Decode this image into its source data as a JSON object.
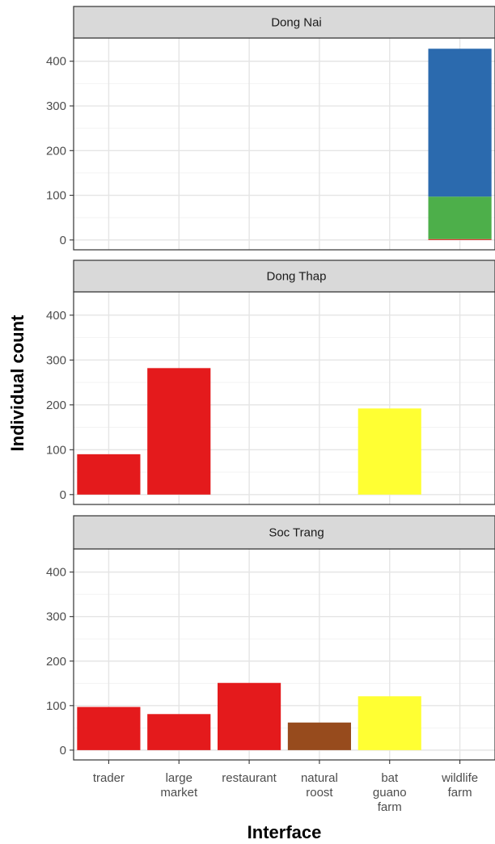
{
  "chart_data": {
    "type": "bar",
    "stacked": true,
    "xlabel": "Interface",
    "ylabel": "Individual count",
    "ylim": [
      0,
      450
    ],
    "y_ticks": [
      0,
      100,
      200,
      300,
      400
    ],
    "grid": true,
    "categories": [
      {
        "id": "trader",
        "lines": [
          "trader"
        ]
      },
      {
        "id": "large-market",
        "lines": [
          "large",
          "market"
        ]
      },
      {
        "id": "restaurant",
        "lines": [
          "restaurant"
        ]
      },
      {
        "id": "natural-roost",
        "lines": [
          "natural",
          "roost"
        ]
      },
      {
        "id": "bat-guano-farm",
        "lines": [
          "bat",
          "guano",
          "farm"
        ]
      },
      {
        "id": "wildlife-farm",
        "lines": [
          "wildlife",
          "farm"
        ]
      }
    ],
    "panels": [
      {
        "title": "Dong Nai",
        "bars": [
          {
            "category": "wildlife-farm",
            "segments": [
              {
                "value": 2,
                "color": "#E41A1C"
              },
              {
                "value": 95,
                "color": "#4DAF4A"
              },
              {
                "value": 331,
                "color": "#2B6AAE"
              }
            ]
          }
        ]
      },
      {
        "title": "Dong Thap",
        "bars": [
          {
            "category": "trader",
            "segments": [
              {
                "value": 90,
                "color": "#E41A1C"
              }
            ]
          },
          {
            "category": "large-market",
            "segments": [
              {
                "value": 282,
                "color": "#E41A1C"
              }
            ]
          },
          {
            "category": "bat-guano-farm",
            "segments": [
              {
                "value": 192,
                "color": "#FFFF33"
              }
            ]
          }
        ]
      },
      {
        "title": "Soc Trang",
        "bars": [
          {
            "category": "trader",
            "segments": [
              {
                "value": 97,
                "color": "#E41A1C"
              }
            ]
          },
          {
            "category": "large-market",
            "segments": [
              {
                "value": 81,
                "color": "#E41A1C"
              }
            ]
          },
          {
            "category": "restaurant",
            "segments": [
              {
                "value": 151,
                "color": "#E41A1C"
              }
            ]
          },
          {
            "category": "natural-roost",
            "segments": [
              {
                "value": 62,
                "color": "#974B1D"
              }
            ]
          },
          {
            "category": "bat-guano-farm",
            "segments": [
              {
                "value": 121,
                "color": "#FFFF33"
              }
            ]
          }
        ]
      }
    ]
  }
}
